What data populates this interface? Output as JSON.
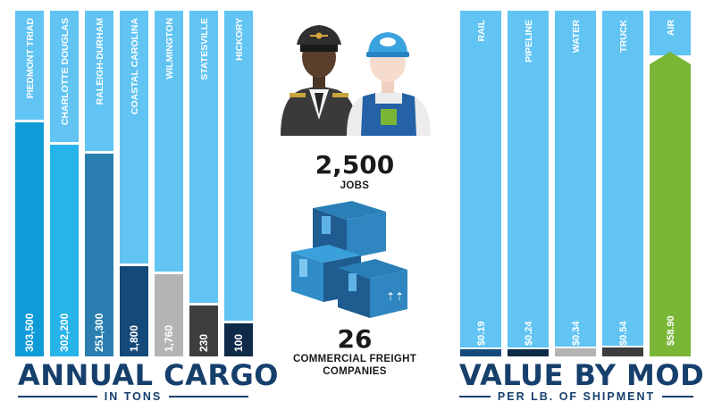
{
  "chart_data": [
    {
      "type": "bar",
      "title": "ANNUAL CARGO",
      "subtitle": "IN TONS",
      "categories": [
        "PIEDMONT TRIAD",
        "CHARLOTTE DOUGLAS",
        "RALEIGH-DURHAM",
        "COASTAL CAROLINA",
        "WILMINGTON",
        "STATESVILLE",
        "HICKORY"
      ],
      "value_labels": [
        "303,500",
        "302,200",
        "251,300",
        "1,800",
        "1,760",
        "230",
        "100"
      ],
      "colors": [
        "#0f9ad8",
        "#27b4ea",
        "#2a7fb0",
        "#15497a",
        "#b4b4b4",
        "#3e3e3e",
        "#0f2a48"
      ]
    },
    {
      "type": "bar",
      "title": "VALUE BY MODE",
      "subtitle": "PER LB. OF SHIPMENT",
      "categories": [
        "RAIL",
        "PIPELINE",
        "WATER",
        "TRUCK",
        "AIR"
      ],
      "values": [
        0.19,
        0.24,
        0.34,
        0.54,
        58.9
      ],
      "value_labels": [
        "$0.19",
        "$0.24",
        "$0.34",
        "$0.54",
        "$58.90"
      ],
      "colors": [
        "#15497a",
        "#0f2a48",
        "#b4b4b4",
        "#3e3e3e",
        "#7ab636"
      ]
    }
  ],
  "stats": {
    "jobs_value": "2,500",
    "jobs_label": "JOBS",
    "companies_value": "26",
    "companies_label": "COMMERCIAL FREIGHT COMPANIES"
  },
  "icons": [
    "pilot-icon",
    "worker-icon",
    "boxes-icon"
  ],
  "colors": {
    "light_blue": "#61c4f3",
    "navy": "#163f6c",
    "green": "#7ab636"
  }
}
